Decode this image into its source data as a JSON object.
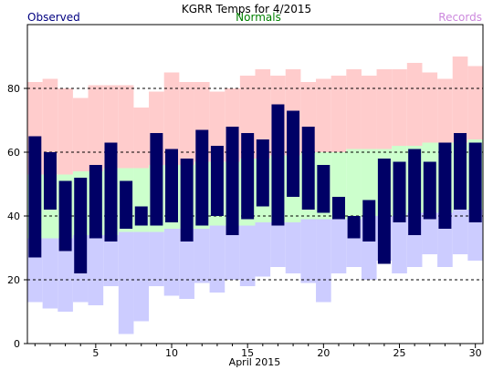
{
  "chart_data": {
    "type": "bar",
    "title": "KGRR Temps for 4/2015",
    "xlabel": "April 2015",
    "ylabel": "",
    "xlim": [
      0.5,
      30.5
    ],
    "ylim": [
      0,
      100
    ],
    "yticks": [
      0,
      20,
      40,
      60,
      80
    ],
    "xticks": [
      5,
      10,
      15,
      20,
      25,
      30
    ],
    "grid": "dashed horizontal at 20, 40, 60, 80",
    "legend": [
      "Observed",
      "Normals",
      "Records"
    ],
    "colors": {
      "observed": "#000066",
      "normals": "#ccffcc",
      "records": "#ccccff",
      "record_high": "#ffcccc",
      "observed_label": "#000080",
      "normals_label": "#008000",
      "records_label": "#cc88dd"
    },
    "days": [
      1,
      2,
      3,
      4,
      5,
      6,
      7,
      8,
      9,
      10,
      11,
      12,
      13,
      14,
      15,
      16,
      17,
      18,
      19,
      20,
      21,
      22,
      23,
      24,
      25,
      26,
      27,
      28,
      29,
      30
    ],
    "series": [
      {
        "name": "Observed",
        "high": [
          65,
          60,
          51,
          52,
          56,
          63,
          51,
          43,
          66,
          61,
          58,
          67,
          62,
          68,
          66,
          64,
          75,
          73,
          68,
          56,
          46,
          40,
          45,
          58,
          57,
          61,
          57,
          63,
          66,
          63
        ],
        "low": [
          27,
          42,
          29,
          22,
          33,
          32,
          36,
          37,
          37,
          38,
          32,
          37,
          40,
          34,
          39,
          43,
          37,
          46,
          42,
          41,
          39,
          33,
          32,
          25,
          38,
          34,
          39,
          36,
          42,
          38
        ]
      },
      {
        "name": "Normals",
        "high": [
          53,
          53,
          53,
          54,
          54,
          55,
          55,
          55,
          56,
          56,
          56,
          57,
          57,
          57,
          58,
          58,
          59,
          59,
          60,
          60,
          60,
          61,
          61,
          61,
          62,
          62,
          63,
          63,
          63,
          64
        ],
        "low": [
          33,
          33,
          33,
          34,
          34,
          34,
          35,
          35,
          35,
          36,
          36,
          36,
          37,
          37,
          37,
          38,
          38,
          38,
          39,
          39,
          39,
          39,
          40,
          40,
          40,
          41,
          41,
          41,
          42,
          42
        ]
      },
      {
        "name": "Records",
        "high": [
          82,
          83,
          80,
          77,
          81,
          81,
          81,
          74,
          79,
          85,
          82,
          82,
          79,
          80,
          84,
          86,
          84,
          86,
          82,
          83,
          84,
          86,
          84,
          86,
          86,
          88,
          85,
          83,
          90,
          87
        ],
        "low": [
          13,
          11,
          10,
          13,
          12,
          18,
          3,
          7,
          18,
          15,
          14,
          19,
          16,
          20,
          18,
          21,
          24,
          22,
          19,
          13,
          22,
          24,
          20,
          26,
          22,
          24,
          28,
          24,
          28,
          26
        ]
      }
    ]
  }
}
